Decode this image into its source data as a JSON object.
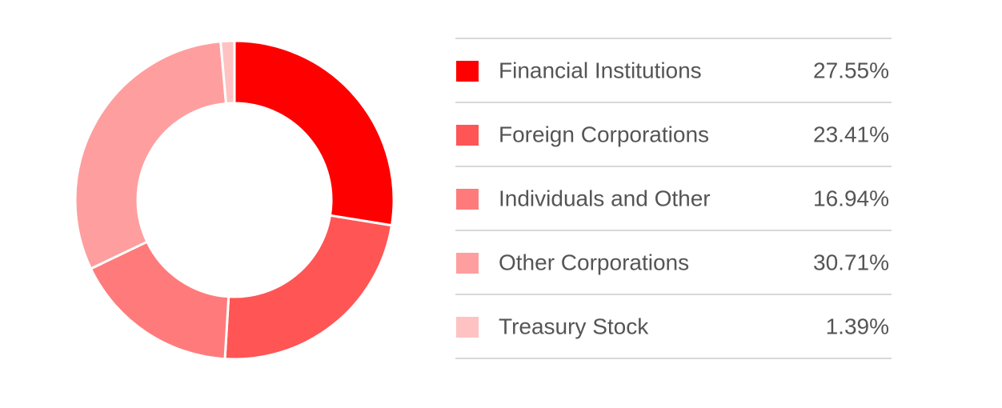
{
  "chart_data": {
    "type": "donut",
    "categories": [
      "Financial Institutions",
      "Foreign Corporations",
      "Individuals and Other",
      "Other Corporations",
      "Treasury Stock"
    ],
    "values": [
      27.55,
      23.41,
      16.94,
      30.71,
      1.39
    ],
    "value_labels": [
      "27.55%",
      "23.41%",
      "16.94%",
      "30.71%",
      "1.39%"
    ],
    "colors": [
      "#ff0000",
      "#ff5555",
      "#ff7b7b",
      "#ff9e9e",
      "#ffc2c2"
    ]
  }
}
